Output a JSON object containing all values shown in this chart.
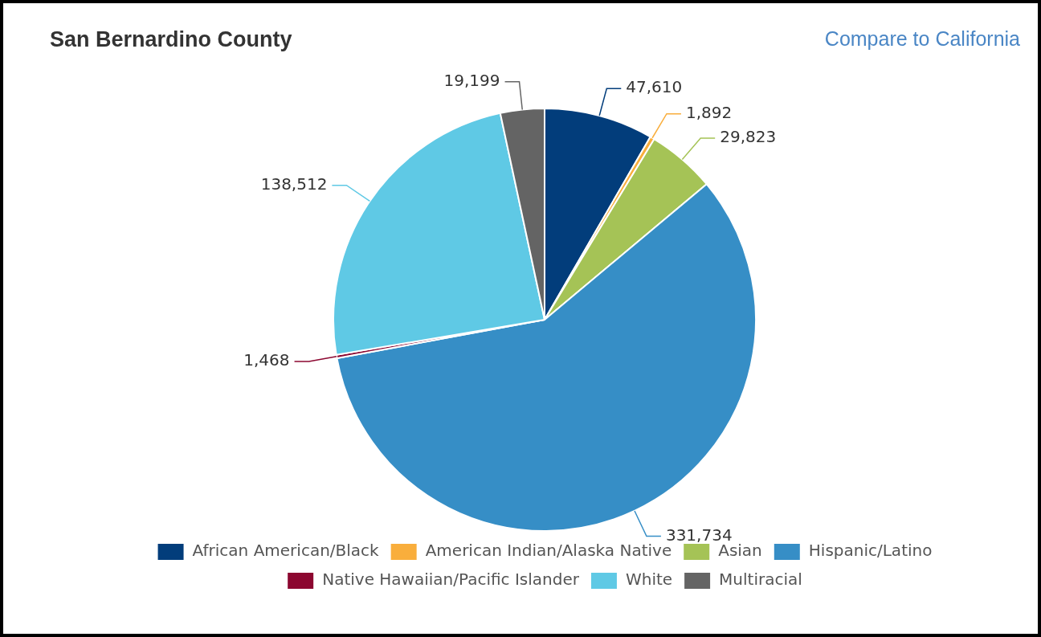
{
  "chart_data": {
    "type": "pie",
    "title": "San Bernardino County",
    "annotations": [
      "Compare to California"
    ],
    "categories": [
      "African American/Black",
      "American Indian/Alaska Native",
      "Asian",
      "Hispanic/Latino",
      "Native Hawaiian/Pacific Islander",
      "White",
      "Multiracial"
    ],
    "values": [
      47610,
      1892,
      29823,
      331734,
      1468,
      138512,
      19199
    ],
    "colors": [
      "#023d7b",
      "#f9ae3c",
      "#a5c356",
      "#368ec6",
      "#8c0730",
      "#5fc9e5",
      "#646464"
    ],
    "value_labels": [
      "47,610",
      "1,892",
      "29,823",
      "331,734",
      "1,468",
      "138,512",
      "19,199"
    ],
    "legend": "bottom"
  }
}
